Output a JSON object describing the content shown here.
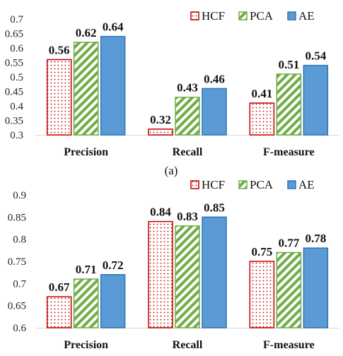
{
  "colors": {
    "HCF_edge": "#c00000",
    "HCF_dot": "#c00000",
    "PCA_edge": "#70ad47",
    "PCA_stripe": "#70ad47",
    "AE_fill": "#5b9bd5",
    "AE_edge": "#2e75b6",
    "axis": "#d9d9d9"
  },
  "legend_placement": "top-right",
  "caption_a": "(a)",
  "chart_data": [
    {
      "type": "bar",
      "categories": [
        "Precision",
        "Recall",
        "F-measure"
      ],
      "series": [
        {
          "name": "HCF",
          "pattern": "dots",
          "values": [
            0.56,
            0.32,
            0.41
          ]
        },
        {
          "name": "PCA",
          "pattern": "diagonal-stripes",
          "values": [
            0.62,
            0.43,
            0.51
          ]
        },
        {
          "name": "AE",
          "pattern": "solid",
          "values": [
            0.64,
            0.46,
            0.54
          ]
        }
      ],
      "data_labels": [
        [
          "0.56",
          "0.32",
          "0.41"
        ],
        [
          "0.62",
          "0.43",
          "0.51"
        ],
        [
          "0.64",
          "0.46",
          "0.54"
        ]
      ],
      "ylim": [
        0.3,
        0.7
      ],
      "yticks": [
        "0.3",
        "0.35",
        "0.4",
        "0.45",
        "0.5",
        "0.55",
        "0.6",
        "0.65",
        "0.7"
      ],
      "ytick_values": [
        0.3,
        0.35,
        0.4,
        0.45,
        0.5,
        0.55,
        0.6,
        0.65,
        0.7
      ],
      "grid": false,
      "title": "",
      "xlabel": "",
      "ylabel": ""
    },
    {
      "type": "bar",
      "categories": [
        "Precision",
        "Recall",
        "F-measure"
      ],
      "series": [
        {
          "name": "HCF",
          "pattern": "dots",
          "values": [
            0.67,
            0.84,
            0.75
          ]
        },
        {
          "name": "PCA",
          "pattern": "diagonal-stripes",
          "values": [
            0.71,
            0.83,
            0.77
          ]
        },
        {
          "name": "AE",
          "pattern": "solid",
          "values": [
            0.72,
            0.85,
            0.78
          ]
        }
      ],
      "data_labels": [
        [
          "0.67",
          "0.84",
          "0.75"
        ],
        [
          "0.71",
          "0.83",
          "0.77"
        ],
        [
          "0.72",
          "0.85",
          "0.78"
        ]
      ],
      "ylim": [
        0.6,
        0.9
      ],
      "yticks": [
        "0.6",
        "0.65",
        "0.7",
        "0.75",
        "0.8",
        "0.85",
        "0.9"
      ],
      "ytick_values": [
        0.6,
        0.65,
        0.7,
        0.75,
        0.8,
        0.85,
        0.9
      ],
      "grid": false,
      "title": "",
      "xlabel": "",
      "ylabel": ""
    }
  ]
}
